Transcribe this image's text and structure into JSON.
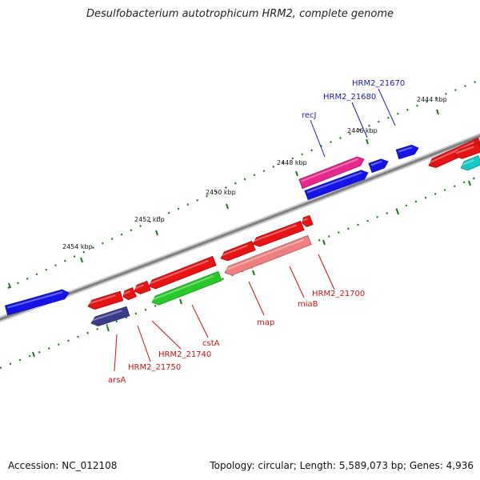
{
  "title": "Desulfobacterium autotrophicum HRM2, complete genome",
  "footer": {
    "accession": "Accession: NC_012108",
    "summary": "Topology: circular; Length: 5,589,073 bp; Genes: 4,936"
  },
  "colors": {
    "backbone": "#808080",
    "ticks": "#1a7a1a",
    "forward_label": "#1a1ab4",
    "reverse_label": "#c81414"
  },
  "kbp_ticks": [
    "2444 kbp",
    "2446 kbp",
    "2448 kbp",
    "2450 kbp",
    "2452 kbp",
    "2454 kbp"
  ],
  "gene_labels": [
    {
      "text": "HRM2_21670",
      "strand": "forward"
    },
    {
      "text": "HRM2_21680",
      "strand": "forward"
    },
    {
      "text": "recJ",
      "strand": "forward"
    },
    {
      "text": "HRM2_21700",
      "strand": "reverse"
    },
    {
      "text": "miaB",
      "strand": "reverse"
    },
    {
      "text": "map",
      "strand": "reverse"
    },
    {
      "text": "cstA",
      "strand": "reverse"
    },
    {
      "text": "HRM2_21740",
      "strand": "reverse"
    },
    {
      "text": "HRM2_21750",
      "strand": "reverse"
    },
    {
      "text": "arsA",
      "strand": "reverse"
    }
  ],
  "features": [
    {
      "name": "gene-forward-left",
      "color": "#1414e6"
    },
    {
      "name": "gene-forward-recj-lower",
      "color": "#1414e6"
    },
    {
      "name": "gene-forward-recj",
      "color": "#e6288c"
    },
    {
      "name": "gene-forward-21680",
      "color": "#1414e6"
    },
    {
      "name": "gene-forward-21670",
      "color": "#1414e6"
    },
    {
      "name": "gene-reverse-right",
      "color": "#e61414"
    },
    {
      "name": "gene-reverse-right-cyan",
      "color": "#14c8c8"
    },
    {
      "name": "gene-reverse-right-lower",
      "color": "#e61414"
    },
    {
      "name": "gene-reverse-arsA-a",
      "color": "#e61414"
    },
    {
      "name": "gene-reverse-arsA-b",
      "color": "#e61414"
    },
    {
      "name": "gene-reverse-arsA-c",
      "color": "#e61414"
    },
    {
      "name": "gene-reverse-arsA-rna",
      "color": "#3c3c8c"
    },
    {
      "name": "gene-reverse-cstA",
      "color": "#e61414"
    },
    {
      "name": "gene-reverse-cstA-rna",
      "color": "#28c828"
    },
    {
      "name": "gene-reverse-map",
      "color": "#e61414"
    },
    {
      "name": "gene-reverse-miaB",
      "color": "#e61414"
    },
    {
      "name": "gene-reverse-miaB-rna",
      "color": "#f08080"
    },
    {
      "name": "gene-reverse-21700",
      "color": "#e61414"
    }
  ]
}
